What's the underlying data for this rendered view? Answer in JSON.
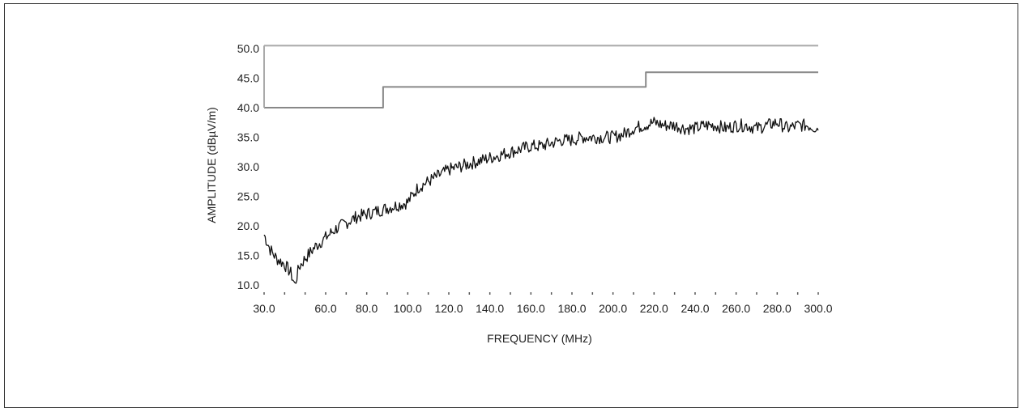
{
  "chart_data": {
    "type": "line",
    "title": "",
    "xlabel": "FREQUENCY (MHz)",
    "ylabel": "AMPLITUDE (dBµV/m)",
    "xlim": [
      30,
      300
    ],
    "ylim": [
      10,
      50
    ],
    "x_ticks": [
      "30.0",
      "60.0",
      "80.0",
      "100.0",
      "120.0",
      "140.0",
      "160.0",
      "180.0",
      "200.0",
      "220.0",
      "240.0",
      "260.0",
      "280.0",
      "300.0"
    ],
    "y_ticks": [
      "10.0",
      "15.0",
      "20.0",
      "25.0",
      "30.0",
      "35.0",
      "40.0",
      "45.0",
      "50.0"
    ],
    "grid": false,
    "colors": {
      "emissions": "#111111",
      "limit_upper": "#aaaaaa",
      "limit_lower": "#888888"
    },
    "series": [
      {
        "x": [
          30,
          33,
          36,
          40,
          43,
          45,
          47,
          50,
          55,
          60,
          65,
          70,
          75,
          80,
          85,
          90,
          95,
          100,
          105,
          110,
          115,
          120,
          125,
          130,
          135,
          140,
          145,
          150,
          155,
          160,
          165,
          170,
          175,
          180,
          185,
          190,
          195,
          200,
          205,
          210,
          215,
          220,
          225,
          230,
          235,
          240,
          245,
          250,
          255,
          260,
          265,
          270,
          275,
          280,
          285,
          290,
          295,
          300
        ],
        "values": [
          18.5,
          16,
          14.5,
          13.5,
          12,
          10,
          13,
          14.5,
          16.5,
          18,
          19.5,
          20.5,
          21.5,
          22,
          22.5,
          23,
          23.5,
          24,
          26.5,
          27.5,
          28.5,
          29.5,
          30,
          30.5,
          31,
          31.5,
          32,
          32.5,
          33,
          33.5,
          33.5,
          34,
          34.5,
          34.5,
          35,
          35,
          35,
          35,
          35.5,
          36.5,
          37,
          37.5,
          37,
          37,
          36.5,
          36.5,
          37,
          37,
          36.5,
          37,
          37,
          36.5,
          37,
          37.5,
          36.5,
          37,
          37,
          36.5
        ]
      },
      {
        "x": [
          30,
          88,
          88,
          216,
          216,
          300
        ],
        "values": [
          40,
          40,
          43.5,
          43.5,
          46,
          46
        ]
      },
      {
        "x": [
          30,
          300
        ],
        "values": [
          50.5,
          50.5
        ]
      }
    ]
  }
}
